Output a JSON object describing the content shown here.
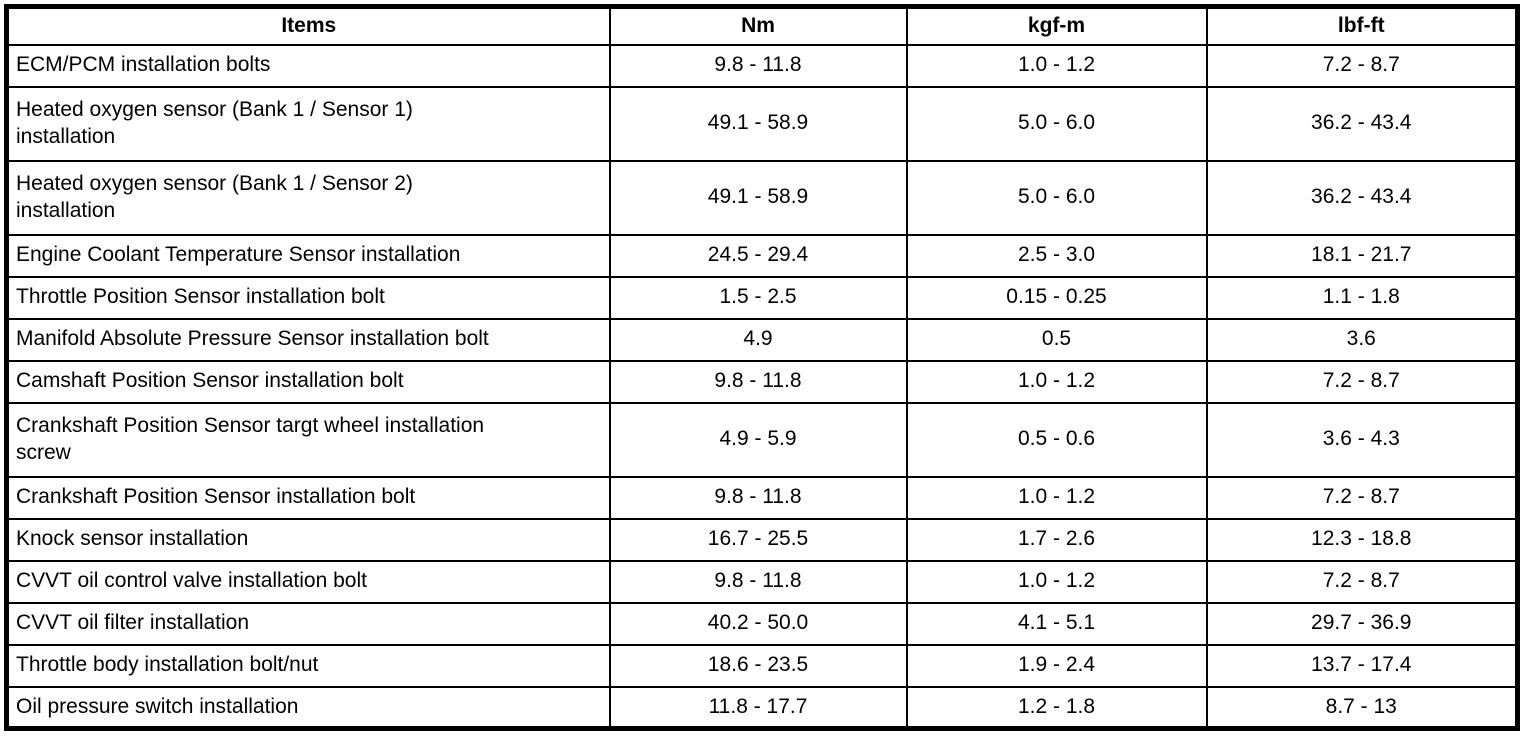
{
  "colors": {
    "border": "#000000",
    "text": "#000000",
    "background": "#ffffff"
  },
  "table": {
    "headers": [
      "Items",
      "Nm",
      "kgf-m",
      "lbf-ft"
    ],
    "rows": [
      {
        "item": "ECM/PCM installation bolts",
        "nm": "9.8 - 11.8",
        "kgf_m": "1.0 - 1.2",
        "lbf_ft": "7.2 - 8.7"
      },
      {
        "item": "Heated oxygen sensor (Bank 1 / Sensor 1)\ninstallation",
        "nm": "49.1 - 58.9",
        "kgf_m": "5.0 - 6.0",
        "lbf_ft": "36.2 - 43.4"
      },
      {
        "item": "Heated oxygen sensor (Bank 1 / Sensor 2)\ninstallation",
        "nm": "49.1 - 58.9",
        "kgf_m": "5.0 - 6.0",
        "lbf_ft": "36.2 - 43.4"
      },
      {
        "item": "Engine Coolant Temperature Sensor installation",
        "nm": "24.5 - 29.4",
        "kgf_m": "2.5 - 3.0",
        "lbf_ft": "18.1 - 21.7"
      },
      {
        "item": "Throttle Position Sensor installation bolt",
        "nm": "1.5 - 2.5",
        "kgf_m": "0.15 - 0.25",
        "lbf_ft": "1.1 - 1.8"
      },
      {
        "item": "Manifold Absolute Pressure Sensor installation bolt",
        "nm": "4.9",
        "kgf_m": "0.5",
        "lbf_ft": "3.6"
      },
      {
        "item": "Camshaft Position Sensor installation bolt",
        "nm": "9.8 - 11.8",
        "kgf_m": "1.0 - 1.2",
        "lbf_ft": "7.2 - 8.7"
      },
      {
        "item": "Crankshaft Position Sensor targt wheel installation\nscrew",
        "nm": "4.9 - 5.9",
        "kgf_m": "0.5 - 0.6",
        "lbf_ft": "3.6 - 4.3"
      },
      {
        "item": "Crankshaft Position Sensor installation bolt",
        "nm": "9.8 - 11.8",
        "kgf_m": "1.0 - 1.2",
        "lbf_ft": "7.2 - 8.7"
      },
      {
        "item": "Knock sensor installation",
        "nm": "16.7 - 25.5",
        "kgf_m": "1.7 - 2.6",
        "lbf_ft": "12.3 - 18.8"
      },
      {
        "item": "CVVT oil control valve installation bolt",
        "nm": "9.8 - 11.8",
        "kgf_m": "1.0 - 1.2",
        "lbf_ft": "7.2 - 8.7"
      },
      {
        "item": "CVVT oil filter installation",
        "nm": "40.2 - 50.0",
        "kgf_m": "4.1 - 5.1",
        "lbf_ft": "29.7 - 36.9"
      },
      {
        "item": "Throttle body installation bolt/nut",
        "nm": "18.6 - 23.5",
        "kgf_m": "1.9 - 2.4",
        "lbf_ft": "13.7 - 17.4"
      },
      {
        "item": "Oil pressure switch installation",
        "nm": "11.8 - 17.7",
        "kgf_m": "1.2 - 1.8",
        "lbf_ft": "8.7 - 13"
      }
    ]
  }
}
